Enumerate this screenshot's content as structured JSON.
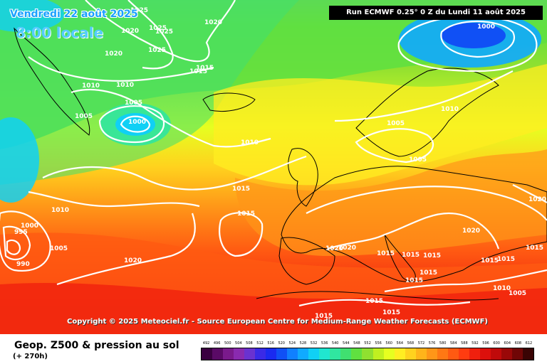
{
  "header": {
    "date_label": "Vendredi 22 août 2025",
    "time_label": "8:00 locale",
    "run_label": "Run ECMWF 0.25° 0 Z du Lundi 11 août 2025"
  },
  "copyright": "Copyright © 2025 Meteociel.fr - Source European Centre for Medium-Range Weather Forecasts (ECMWF)",
  "footer": {
    "title": "Geop. Z500 & pression au sol",
    "offset": "(+ 270h)"
  },
  "legend": {
    "values": [
      "492",
      "496",
      "500",
      "504",
      "508",
      "512",
      "516",
      "520",
      "524",
      "528",
      "532",
      "536",
      "540",
      "544",
      "548",
      "552",
      "556",
      "560",
      "564",
      "568",
      "572",
      "576",
      "580",
      "584",
      "588",
      "592",
      "596",
      "600",
      "604",
      "608",
      "612"
    ],
    "colors": [
      "#3a0040",
      "#5a0a66",
      "#7a1a8c",
      "#8a2ab0",
      "#6a32d0",
      "#3a2ae6",
      "#1a2af0",
      "#1050f5",
      "#1080ff",
      "#10aaff",
      "#10d0f5",
      "#20e6d0",
      "#30e6a0",
      "#40e070",
      "#60e040",
      "#90e030",
      "#c0f020",
      "#e6ff20",
      "#ffee22",
      "#ffd21e",
      "#ffb41a",
      "#ff9618",
      "#ff7814",
      "#ff5a12",
      "#ff3c10",
      "#f0200e",
      "#dc100c",
      "#c00a0a",
      "#9a0808",
      "#700606",
      "#3a0404"
    ]
  },
  "isobar_labels": [
    "1025",
    "1020",
    "1025",
    "1025",
    "1020",
    "1020",
    "1025",
    "1015",
    "1015",
    "1010",
    "1010",
    "1005",
    "1000",
    "1005",
    "1010",
    "1015",
    "1010",
    "1015",
    "1000",
    "995",
    "990",
    "1005",
    "1020",
    "1020",
    "1020",
    "1015",
    "1015",
    "1015",
    "1015",
    "1015",
    "1020",
    "1020",
    "1015",
    "1015",
    "1015",
    "1015",
    "1010",
    "1005",
    "1015",
    "1015",
    "1000",
    "1010",
    "1005",
    "1005"
  ],
  "map_layers": {
    "field": "geopotential 500 hPa",
    "contours": "sea level pressure",
    "landmass": "coastlines and borders",
    "legend_colors_semantic": "cold-to-warm scale"
  }
}
